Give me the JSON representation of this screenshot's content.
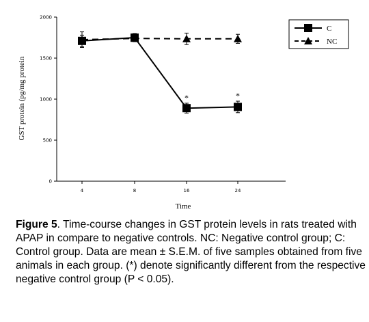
{
  "chart_data": {
    "type": "line",
    "xlabel": "Time",
    "ylabel": "GST protein (pg/mg protein",
    "ylim": [
      0,
      2000
    ],
    "yticks": [
      "0",
      "500",
      "1000",
      "1500",
      "2000"
    ],
    "categories": [
      "4",
      "8",
      "16",
      "24"
    ],
    "series": [
      {
        "name": "C",
        "values": [
          1710,
          1750,
          890,
          905
        ],
        "errors": [
          70,
          50,
          60,
          70
        ],
        "marker": "square",
        "line": "solid",
        "significant": [
          false,
          false,
          true,
          true
        ]
      },
      {
        "name": "NC",
        "values": [
          1725,
          1740,
          1735,
          1735
        ],
        "errors": [
          95,
          40,
          70,
          55
        ],
        "marker": "triangle",
        "line": "dashed",
        "significant": [
          false,
          false,
          false,
          false
        ]
      }
    ],
    "significance_marker": "*",
    "legend_position": "top-right",
    "grid": false
  },
  "caption": {
    "label": "Figure 5",
    "text": ". Time-course changes in GST protein levels in rats treated with APAP in compare to negative controls. NC: Negative control group; C: Control group. Data are mean ± S.E.M. of five samples obtained from five animals in each group. (*) denote significantly different from the respective negative control group (P < 0.05)."
  }
}
